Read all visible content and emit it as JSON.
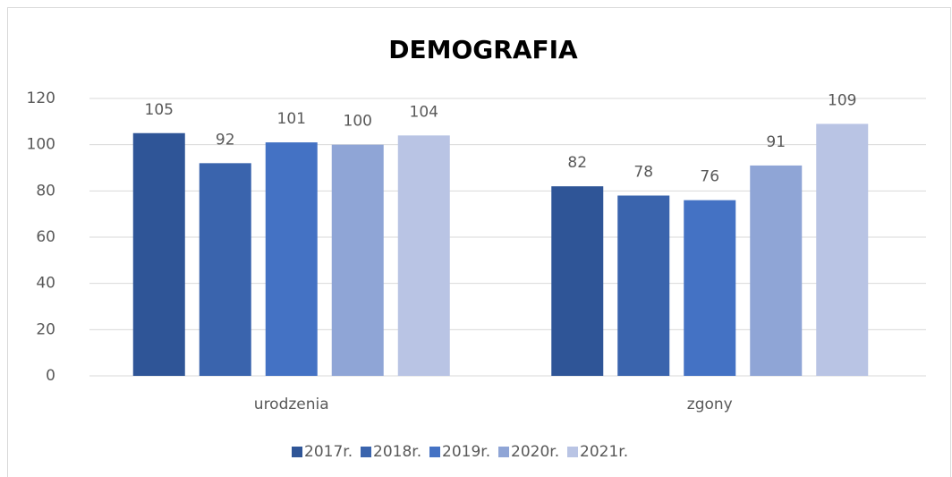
{
  "chart_data": {
    "type": "bar",
    "title": "DEMOGRAFIA",
    "categories": [
      "urodzenia",
      "zgony"
    ],
    "series": [
      {
        "name": "2017r.",
        "color": "#2f5597",
        "values": [
          105,
          82
        ]
      },
      {
        "name": "2018r.",
        "color": "#3a64ad",
        "values": [
          92,
          78
        ]
      },
      {
        "name": "2019r.",
        "color": "#4472c4",
        "values": [
          101,
          76
        ]
      },
      {
        "name": "2020r.",
        "color": "#8fa5d6",
        "values": [
          100,
          91
        ]
      },
      {
        "name": "2021r.",
        "color": "#b9c4e4",
        "values": [
          104,
          109
        ]
      }
    ],
    "ylim": [
      0,
      120
    ],
    "yticks": [
      0,
      20,
      40,
      60,
      80,
      100,
      120
    ],
    "grid": true,
    "legend": "bottom"
  }
}
